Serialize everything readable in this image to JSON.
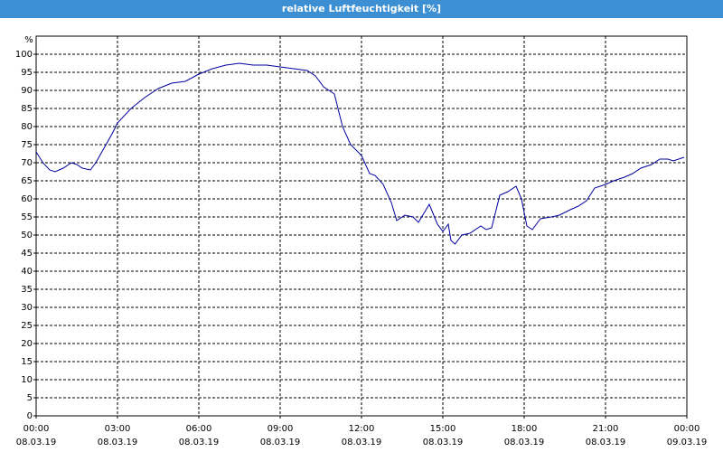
{
  "chart_data": {
    "type": "line",
    "title": "relative Luftfeuchtigkeit [%]",
    "y_label": "%",
    "x": [
      0,
      0.25,
      0.5,
      0.7,
      1.0,
      1.3,
      1.5,
      1.7,
      2.0,
      2.2,
      2.5,
      2.8,
      3.0,
      3.5,
      4.0,
      4.5,
      5.0,
      5.5,
      6.0,
      6.5,
      7.0,
      7.5,
      8.0,
      8.5,
      9.0,
      9.5,
      10.0,
      10.3,
      10.6,
      11.0,
      11.3,
      11.6,
      12.0,
      12.3,
      12.5,
      12.8,
      13.1,
      13.3,
      13.6,
      13.9,
      14.1,
      14.5,
      14.8,
      15.0,
      15.2,
      15.3,
      15.45,
      15.7,
      16.0,
      16.4,
      16.6,
      16.8,
      17.1,
      17.4,
      17.7,
      17.9,
      18.1,
      18.3,
      18.6,
      19.0,
      19.3,
      19.7,
      20.0,
      20.3,
      20.6,
      21.0,
      21.3,
      21.7,
      22.0,
      22.3,
      22.7,
      23.0,
      23.3,
      23.5,
      23.9
    ],
    "series": [
      {
        "name": "relative Luftfeuchtigkeit",
        "color": "#0000a0",
        "values": [
          73,
          70,
          68,
          67.5,
          68.5,
          70,
          69.5,
          68.5,
          68,
          70,
          74,
          78,
          81,
          85,
          88,
          90.5,
          92,
          92.5,
          94.5,
          96,
          97,
          97.5,
          97,
          97,
          96.5,
          96,
          95.5,
          94,
          91,
          89,
          80,
          75,
          72,
          67,
          66.5,
          64,
          59,
          54,
          55.5,
          55,
          53.5,
          58.5,
          53,
          51,
          53,
          48.5,
          47.5,
          50,
          50.5,
          52.5,
          51.5,
          52,
          61,
          62,
          63.5,
          60,
          52.5,
          51.5,
          54.5,
          55,
          55.5,
          57,
          58,
          59.5,
          63,
          64,
          65,
          66,
          67,
          68.5,
          69.5,
          71,
          71,
          70.5,
          71.5
        ]
      }
    ],
    "xlim": [
      0,
      24
    ],
    "xticks": [
      {
        "value": 0,
        "label": "00:00"
      },
      {
        "value": 3,
        "label": "03:00"
      },
      {
        "value": 6,
        "label": "06:00"
      },
      {
        "value": 9,
        "label": "09:00"
      },
      {
        "value": 12,
        "label": "12:00"
      },
      {
        "value": 15,
        "label": "15:00"
      },
      {
        "value": 18,
        "label": "18:00"
      },
      {
        "value": 21,
        "label": "21:00"
      },
      {
        "value": 24,
        "label": "00:00"
      }
    ],
    "xtick_dates": [
      "08.03.19",
      "08.03.19",
      "08.03.19",
      "08.03.19",
      "08.03.19",
      "08.03.19",
      "08.03.19",
      "08.03.19",
      "09.03.19"
    ],
    "ylim": [
      0,
      105
    ],
    "yticks": [
      0,
      5,
      10,
      15,
      20,
      25,
      30,
      35,
      40,
      45,
      50,
      55,
      60,
      65,
      70,
      75,
      80,
      85,
      90,
      95,
      100
    ],
    "grid": true
  }
}
